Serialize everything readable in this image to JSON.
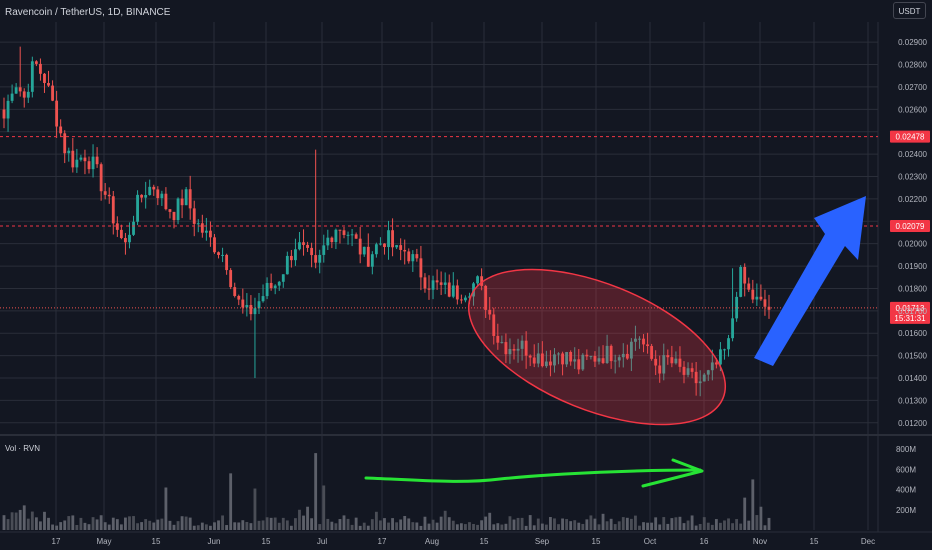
{
  "header": {
    "symbol_title": "Ravencoin / TetherUS, 1D, BINANCE",
    "currency_button": "USDT"
  },
  "volume_pane": {
    "title": "Vol · RVN"
  },
  "price_axis": {
    "ticks": [
      "0.02900",
      "0.02800",
      "0.02700",
      "0.02600",
      "0.02500",
      "0.02400",
      "0.02300",
      "0.02200",
      "0.02100",
      "0.02000",
      "0.01900",
      "0.01800",
      "0.01700",
      "0.01600",
      "0.01500",
      "0.01400",
      "0.01300",
      "0.01200"
    ],
    "level_labels": [
      {
        "label": "0.02478",
        "value": 0.02478
      },
      {
        "label": "0.02079",
        "value": 0.02079
      }
    ],
    "last_price": {
      "label": "0.01713",
      "value": 0.01713,
      "countdown": "15:31:31"
    }
  },
  "volume_axis": {
    "ticks": [
      "800M",
      "600M",
      "400M",
      "200M"
    ]
  },
  "time_axis": {
    "ticks": [
      "17",
      "May",
      "15",
      "Jun",
      "15",
      "Jul",
      "17",
      "Aug",
      "15",
      "Sep",
      "15",
      "Oct",
      "16",
      "Nov",
      "15",
      "Dec"
    ]
  },
  "colors": {
    "up": "#26a69a",
    "down": "#ef5350",
    "level": "#f23645",
    "arrow": "#2962ff",
    "ellipse": "#f23645",
    "trend_stroke": "#27e335",
    "background": "#131722",
    "grid": "#2a2e39"
  },
  "annotations": {
    "ellipse": "red-highlight-ellipse",
    "breakout_arrow": "blue-up-arrow-icon",
    "volume_arrow": "green-trend-arrow-icon"
  },
  "chart_data": {
    "type": "candlestick",
    "title": "Ravencoin / TetherUS, 1D, BINANCE",
    "ylim": [
      0.0115,
      0.0299
    ],
    "volume_ylim": [
      0,
      850
    ],
    "volume_unit": "M",
    "ohlc_anchor_closes": [
      0.0256,
      0.0274,
      0.0265,
      0.0281,
      0.0274,
      0.026,
      0.0243,
      0.0236,
      0.024,
      0.0234,
      0.0223,
      0.021,
      0.0198,
      0.0215,
      0.0224,
      0.0226,
      0.0217,
      0.0214,
      0.0222,
      0.021,
      0.0204,
      0.0199,
      0.0194,
      0.0176,
      0.0168,
      0.0172,
      0.0179,
      0.0182,
      0.0191,
      0.02,
      0.0195,
      0.0188,
      0.0201,
      0.0208,
      0.0206,
      0.02,
      0.0193,
      0.0199,
      0.0203,
      0.0196,
      0.0197,
      0.019,
      0.0183,
      0.0181,
      0.0179,
      0.0178,
      0.018,
      0.0183,
      0.0172,
      0.0158,
      0.0154,
      0.0155,
      0.0153,
      0.015,
      0.0148,
      0.0152,
      0.0149,
      0.0145,
      0.0148,
      0.015,
      0.0151,
      0.0152,
      0.0153,
      0.016,
      0.015,
      0.0145,
      0.0148,
      0.0144,
      0.014,
      0.0138,
      0.0141,
      0.0147,
      0.0155,
      0.0187,
      0.0178,
      0.0173,
      0.0171
    ],
    "horizontal_levels": [
      0.02478,
      0.02079
    ],
    "last_price": 0.01713,
    "volume_spikes_M": [
      {
        "at": "Jun",
        "value": 420
      },
      {
        "at": "Jul",
        "value": 770
      },
      {
        "at": "Jul",
        "value": 440
      },
      {
        "at": "Nov",
        "value": 500
      }
    ]
  }
}
